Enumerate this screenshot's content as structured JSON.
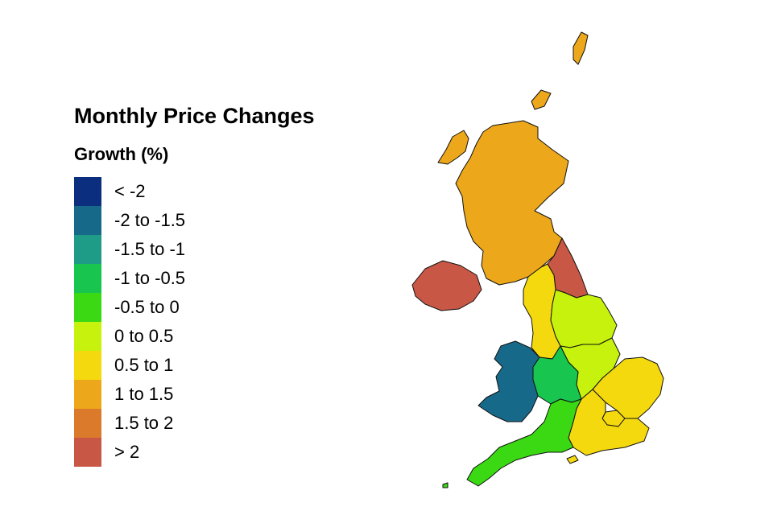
{
  "legend": {
    "title": "Monthly Price Changes",
    "subtitle": "Growth (%)",
    "classes": [
      {
        "label": "< -2",
        "color": "#0b2f7e"
      },
      {
        "label": "-2 to -1.5",
        "color": "#17698a"
      },
      {
        "label": "-1.5 to -1",
        "color": "#1f9c88"
      },
      {
        "label": "-1 to -0.5",
        "color": "#17c54f"
      },
      {
        "label": "-0.5 to 0",
        "color": "#3ad914"
      },
      {
        "label": "0 to 0.5",
        "color": "#c6f20d"
      },
      {
        "label": "0.5 to 1",
        "color": "#f5d90f"
      },
      {
        "label": "1 to 1.5",
        "color": "#eca71a"
      },
      {
        "label": "1.5 to 2",
        "color": "#dc7a2c"
      },
      {
        "label": "> 2",
        "color": "#c85745"
      }
    ]
  },
  "regions": [
    {
      "id": "scotland",
      "class": "1 to 1.5"
    },
    {
      "id": "north-east",
      "class": "> 2"
    },
    {
      "id": "northern-ireland",
      "class": "> 2"
    },
    {
      "id": "north-west",
      "class": "0.5 to 1"
    },
    {
      "id": "yorkshire-and-the-humber",
      "class": "0 to 0.5"
    },
    {
      "id": "east-midlands",
      "class": "0 to 0.5"
    },
    {
      "id": "west-midlands",
      "class": "-1 to -0.5"
    },
    {
      "id": "wales",
      "class": "-2 to -1.5"
    },
    {
      "id": "east-of-england",
      "class": "0.5 to 1"
    },
    {
      "id": "london",
      "class": "0.5 to 1"
    },
    {
      "id": "south-east",
      "class": "0.5 to 1"
    },
    {
      "id": "south-west",
      "class": "-0.5 to 0"
    }
  ]
}
